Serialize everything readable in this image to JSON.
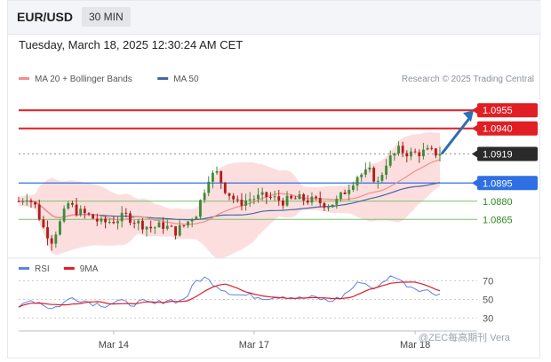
{
  "header": {
    "symbol": "EUR/USD",
    "timeframe": "30 MIN"
  },
  "datetime": "Tuesday, March 18, 2025 12:30:24 AM CET",
  "credit": "Research © 2025 Trading Central",
  "watermark": "@ZEC每高期刊 Vera",
  "colors": {
    "resistance": "#e01e24",
    "pivot": "#2a2a2a",
    "support_main": "#2f6fe4",
    "support_green": "#7cc26f",
    "support_text": "#2c8a1e",
    "bullish": "#3f8b3a",
    "bearish": "#b11d1d",
    "bb_fill": "#fbd3d3",
    "ma20": "#f48c8c",
    "ma50": "#4566a8",
    "rsi": "#5b82e6",
    "rsi_ma": "#e01e24",
    "arrow": "#2f6db5"
  },
  "chart_data": [
    {
      "type": "line",
      "subtype": "candlestick",
      "title": "",
      "legend": [
        {
          "name": "MA 20 + Bollinger Bands",
          "color": "#f48c8c"
        },
        {
          "name": "MA 50",
          "color": "#4566a8"
        }
      ],
      "legend_placement": "top-left",
      "x_ticks": [
        "Mar 14",
        "Mar 17",
        "Mar 18"
      ],
      "ylim": [
        1.0833,
        1.0972
      ],
      "levels": [
        {
          "value": 1.0955,
          "label": "1.0955",
          "kind": "resistance"
        },
        {
          "value": 1.094,
          "label": "1.0940",
          "kind": "resistance"
        },
        {
          "value": 1.0919,
          "label": "1.0919",
          "kind": "pivot"
        },
        {
          "value": 1.0895,
          "label": "1.0895",
          "kind": "support_main"
        },
        {
          "value": 1.088,
          "label": "1.0880",
          "kind": "support"
        },
        {
          "value": 1.0865,
          "label": "1.0865",
          "kind": "support"
        }
      ],
      "anchors": [
        [
          0,
          1.088
        ],
        [
          2,
          1.0884
        ],
        [
          4,
          1.0876
        ],
        [
          6,
          1.0858
        ],
        [
          8,
          1.0848
        ],
        [
          10,
          1.0862
        ],
        [
          12,
          1.0878
        ],
        [
          14,
          1.0872
        ],
        [
          17,
          1.0868
        ],
        [
          20,
          1.0862
        ],
        [
          23,
          1.0864
        ],
        [
          26,
          1.0868
        ],
        [
          29,
          1.0862
        ],
        [
          32,
          1.0858
        ],
        [
          35,
          1.086
        ],
        [
          38,
          1.0855
        ],
        [
          40,
          1.086
        ],
        [
          43,
          1.087
        ],
        [
          46,
          1.09
        ],
        [
          48,
          1.0903
        ],
        [
          50,
          1.089
        ],
        [
          53,
          1.0878
        ],
        [
          56,
          1.0882
        ],
        [
          60,
          1.0884
        ],
        [
          64,
          1.088
        ],
        [
          68,
          1.0882
        ],
        [
          72,
          1.088
        ],
        [
          75,
          1.0877
        ],
        [
          77,
          1.088
        ],
        [
          79,
          1.0888
        ],
        [
          82,
          1.0901
        ],
        [
          85,
          1.0904
        ],
        [
          87,
          1.0895
        ],
        [
          89,
          1.0912
        ],
        [
          92,
          1.0922
        ],
        [
          95,
          1.0919
        ],
        [
          99,
          1.0921
        ],
        [
          102,
          1.0919
        ]
      ],
      "candle_count": 103,
      "forecast_target": 1.0955
    },
    {
      "type": "line",
      "title": "",
      "legend": [
        {
          "name": "RSI",
          "color": "#5b82e6"
        },
        {
          "name": "9MA",
          "color": "#e01e24"
        }
      ],
      "ylim": [
        20,
        80
      ],
      "y_ticks": [
        70,
        50,
        30
      ],
      "anchors": [
        [
          0,
          41
        ],
        [
          2,
          50
        ],
        [
          5,
          47
        ],
        [
          8,
          40
        ],
        [
          10,
          44
        ],
        [
          13,
          52
        ],
        [
          15,
          50
        ],
        [
          18,
          46
        ],
        [
          21,
          44
        ],
        [
          24,
          48
        ],
        [
          27,
          45
        ],
        [
          30,
          47
        ],
        [
          33,
          45
        ],
        [
          36,
          50
        ],
        [
          39,
          48
        ],
        [
          41,
          55
        ],
        [
          43,
          70
        ],
        [
          45,
          73
        ],
        [
          47,
          68
        ],
        [
          49,
          62
        ],
        [
          51,
          58
        ],
        [
          53,
          55
        ],
        [
          56,
          54
        ],
        [
          60,
          52
        ],
        [
          64,
          54
        ],
        [
          68,
          51
        ],
        [
          72,
          52
        ],
        [
          75,
          48
        ],
        [
          78,
          52
        ],
        [
          81,
          63
        ],
        [
          83,
          70
        ],
        [
          85,
          64
        ],
        [
          87,
          62
        ],
        [
          89,
          72
        ],
        [
          91,
          76
        ],
        [
          93,
          68
        ],
        [
          95,
          64
        ],
        [
          98,
          60
        ],
        [
          100,
          58
        ],
        [
          102,
          56
        ]
      ]
    }
  ]
}
